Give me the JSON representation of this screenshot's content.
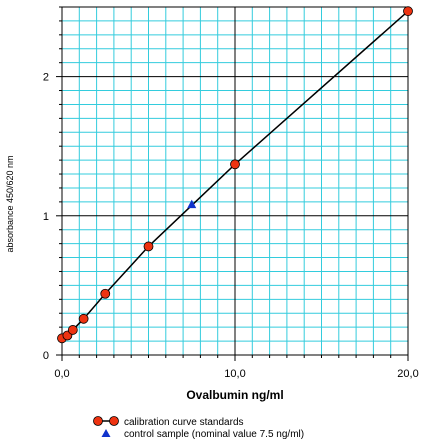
{
  "chart_data": {
    "type": "line",
    "xlabel": "Ovalbumin ng/ml",
    "ylabel": "absorbance 450/620 nm",
    "xlim": [
      0,
      20
    ],
    "ylim": [
      0,
      2.5
    ],
    "x_ticks": [
      "0,0",
      "10,0",
      "20,0"
    ],
    "y_ticks": [
      "0",
      "1",
      "2"
    ],
    "grid": true,
    "legend_placement": "bottom",
    "colors": {
      "minor_grid": "#33ccdd",
      "major_grid": "#000000",
      "curve": "#000000",
      "standards_marker": "#ee3311",
      "control_marker": "#1133cc"
    },
    "series": [
      {
        "name": "calibration curve standards",
        "marker": "circle",
        "x": [
          0,
          0.313,
          0.625,
          1.25,
          2.5,
          5,
          10,
          20
        ],
        "y": [
          0.12,
          0.14,
          0.18,
          0.26,
          0.44,
          0.78,
          1.37,
          2.47
        ]
      },
      {
        "name": "control sample (nominal value 7.5 ng/ml)",
        "marker": "triangle",
        "x": [
          7.5
        ],
        "y": [
          1.08
        ]
      }
    ]
  }
}
